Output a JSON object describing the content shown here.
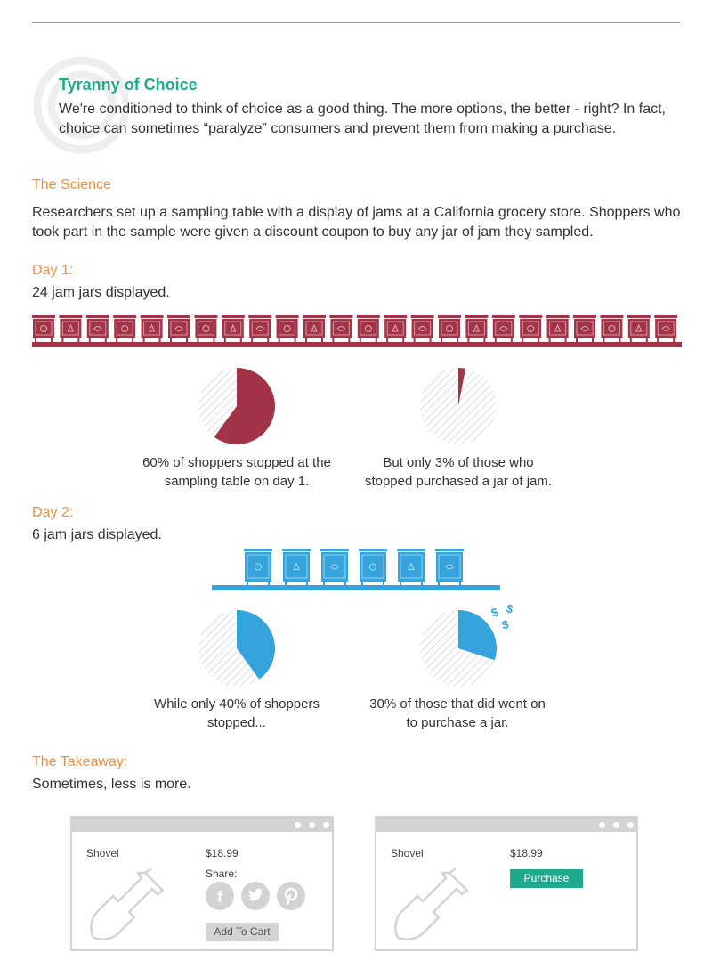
{
  "colors": {
    "teal": "#1fa98d",
    "orange": "#f28c3a",
    "maroon": "#a33448",
    "blue": "#35a3dc",
    "gray": "#d3d3d3"
  },
  "hero": {
    "title": "Tyranny of Choice",
    "intro": "We're conditioned to think of choice as a good thing. The more options, the better - right? In fact, choice can sometimes “paralyze” consumers and prevent them from making a purchase."
  },
  "science": {
    "heading": "The Science",
    "text": "Researchers set up a sampling table with a display of jams at a California grocery store. Shoppers who took part in the sample were given a discount coupon to buy any jar of jam they sampled."
  },
  "day1": {
    "heading": "Day 1:",
    "subtitle": "24 jam jars displayed.",
    "jar_count": 24,
    "stopped_percent": 60,
    "purchased_percent": 3,
    "caption_stopped": "60% of shoppers stopped at the sampling table on day 1.",
    "caption_purchased": "But only 3% of those who stopped purchased a jar of jam."
  },
  "day2": {
    "heading": "Day 2:",
    "subtitle": "6 jam jars displayed.",
    "jar_count": 6,
    "stopped_percent": 40,
    "purchased_percent": 30,
    "caption_stopped": "While only 40% of shoppers stopped...",
    "caption_purchased": "30% of those that did went on to purchase a jar.",
    "dollar_glyph": "$"
  },
  "takeaway": {
    "heading": "The Takeaway:",
    "text": "Sometimes, less is more."
  },
  "product_left": {
    "name": "Shovel",
    "price": "$18.99",
    "share_label": "Share:",
    "social_icons": [
      "facebook-icon",
      "twitter-icon",
      "pinterest-icon"
    ],
    "add_to_cart_label": "Add To Cart"
  },
  "product_right": {
    "name": "Shovel",
    "price": "$18.99",
    "purchase_label": "Purchase"
  }
}
